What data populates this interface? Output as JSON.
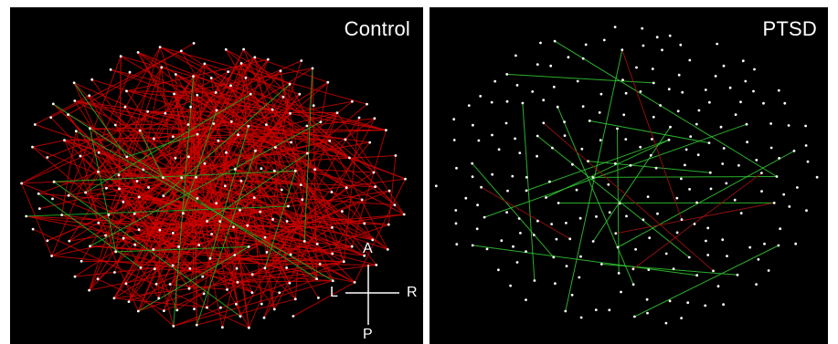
{
  "panels": [
    {
      "id": "control",
      "title": "Control",
      "edge_color": "#cc0000",
      "minor_edge_color": "#22aa22",
      "node_color": "#ffffff",
      "dominant_edges": "red"
    },
    {
      "id": "ptsd",
      "title": "PTSD",
      "edge_color": "#33cc33",
      "minor_edge_color": "#991111",
      "node_color": "#ffffff",
      "dominant_edges": "green"
    }
  ],
  "orientation": {
    "anterior": "A",
    "posterior": "P",
    "left": "L",
    "right": "R"
  },
  "colors": {
    "background": "#000000",
    "separator": "#ffffff"
  }
}
